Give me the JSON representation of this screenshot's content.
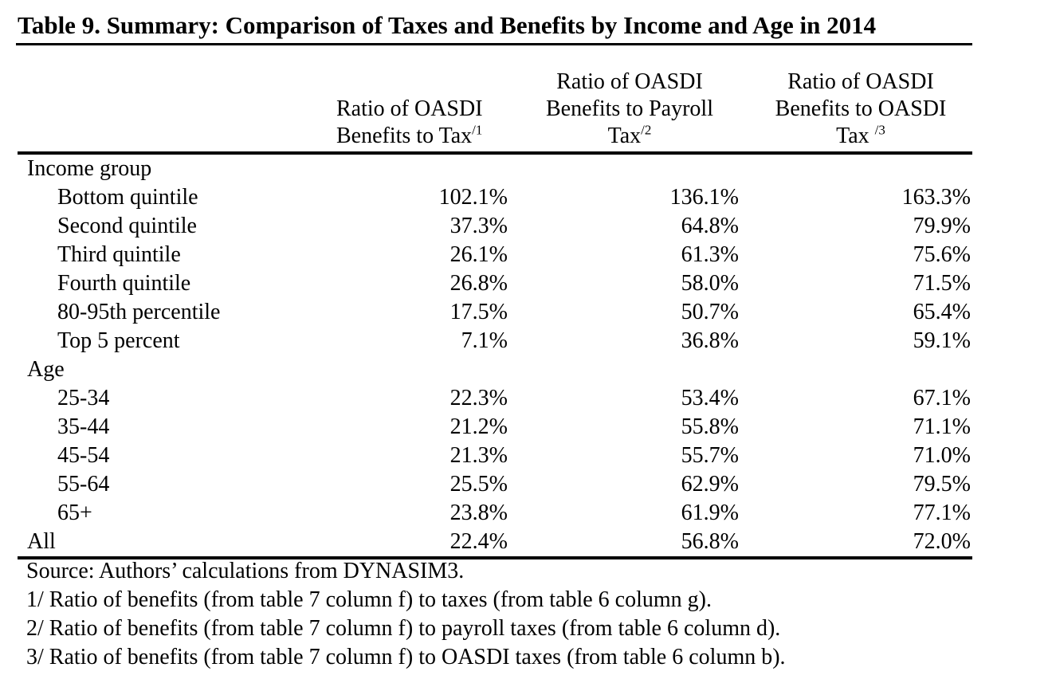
{
  "title": "Table 9. Summary: Comparison of Taxes and Benefits by Income and Age in 2014",
  "table": {
    "columns": [
      {
        "line1": "Ratio of OASDI",
        "line2": "Benefits to Tax",
        "sup": "/1"
      },
      {
        "line1": "Ratio of OASDI",
        "line2": "Benefits to Payroll",
        "line3": "Tax",
        "sup": "/2"
      },
      {
        "line1": "Ratio of OASDI",
        "line2": "Benefits to OASDI",
        "line3": "Tax ",
        "sup": "/3"
      }
    ],
    "rows": [
      {
        "label": "Income group",
        "values": [
          "",
          "",
          ""
        ],
        "indent": false
      },
      {
        "label": "Bottom quintile",
        "values": [
          "102.1%",
          "136.1%",
          "163.3%"
        ],
        "indent": true
      },
      {
        "label": "Second quintile",
        "values": [
          "37.3%",
          "64.8%",
          "79.9%"
        ],
        "indent": true
      },
      {
        "label": "Third quintile",
        "values": [
          "26.1%",
          "61.3%",
          "75.6%"
        ],
        "indent": true
      },
      {
        "label": "Fourth quintile",
        "values": [
          "26.8%",
          "58.0%",
          "71.5%"
        ],
        "indent": true
      },
      {
        "label": "80-95th percentile",
        "values": [
          "17.5%",
          "50.7%",
          "65.4%"
        ],
        "indent": true
      },
      {
        "label": "Top 5 percent",
        "values": [
          "7.1%",
          "36.8%",
          "59.1%"
        ],
        "indent": true
      },
      {
        "label": "Age",
        "values": [
          "",
          "",
          ""
        ],
        "indent": false
      },
      {
        "label": "25-34",
        "values": [
          "22.3%",
          "53.4%",
          "67.1%"
        ],
        "indent": true
      },
      {
        "label": "35-44",
        "values": [
          "21.2%",
          "55.8%",
          "71.1%"
        ],
        "indent": true
      },
      {
        "label": "45-54",
        "values": [
          "21.3%",
          "55.7%",
          "71.0%"
        ],
        "indent": true
      },
      {
        "label": "55-64",
        "values": [
          "25.5%",
          "62.9%",
          "79.5%"
        ],
        "indent": true
      },
      {
        "label": "65+",
        "values": [
          "23.8%",
          "61.9%",
          "77.1%"
        ],
        "indent": true
      },
      {
        "label": "All",
        "values": [
          "22.4%",
          "56.8%",
          "72.0%"
        ],
        "indent": false
      }
    ]
  },
  "footnotes": [
    "Source: Authors’ calculations from DYNASIM3.",
    "1/ Ratio of benefits (from table 7 column f) to taxes (from table 6 column g).",
    "2/ Ratio of benefits (from table 7 column f) to payroll taxes (from table 6 column d).",
    "3/ Ratio of benefits (from table 7 column f) to OASDI taxes (from table 6 column b)."
  ]
}
